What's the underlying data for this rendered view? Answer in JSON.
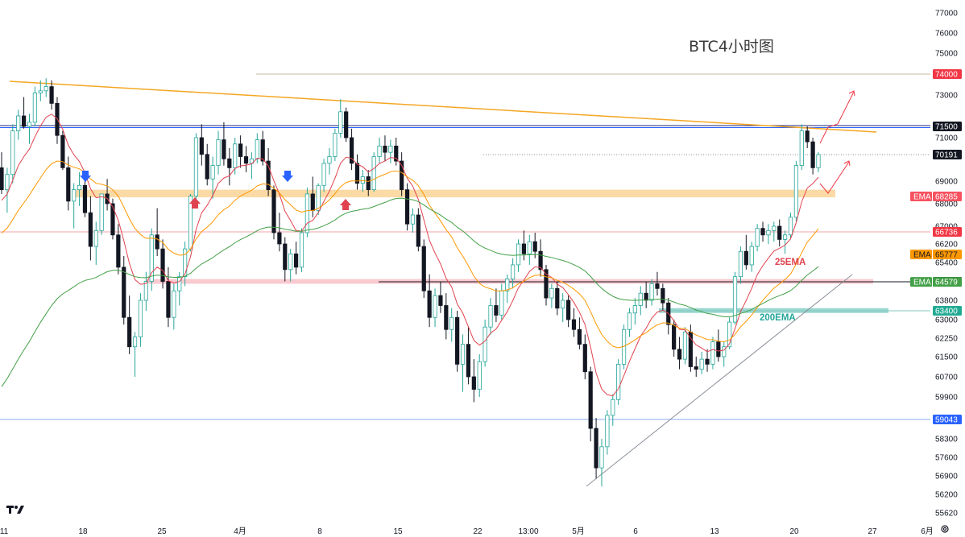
{
  "chart_data": {
    "type": "candlestick",
    "title": "BTC4小时图",
    "y_ticks": [
      77000,
      76000,
      75000,
      73000,
      71000,
      69000,
      68000,
      67000,
      66200,
      65400,
      63800,
      63000,
      62250,
      61500,
      60700,
      59900,
      58300,
      57600,
      56900,
      56200,
      55620
    ],
    "x_ticks": [
      "11",
      "18",
      "25",
      "4月",
      "8",
      "15",
      "22",
      "13:00",
      "5月",
      "6",
      "13",
      "20",
      "27",
      "6月"
    ],
    "price_tags": [
      {
        "value": "74000",
        "color": "#f23645",
        "text_color": "#ffffff"
      },
      {
        "value": "71500",
        "color": "#131722",
        "text_color": "#ffffff"
      },
      {
        "value": "70191",
        "color": "#131722",
        "text_color": "#ffffff"
      },
      {
        "value": "68285",
        "label": "EMA",
        "color": "#f7525f",
        "text_color": "#ffffff"
      },
      {
        "value": "66736",
        "color": "#f23645",
        "text_color": "#ffffff"
      },
      {
        "value": "65777",
        "label": "EMA",
        "color": "#ff9800",
        "text_color": "#131722"
      },
      {
        "value": "64584",
        "color": "#131722",
        "text_color": "#ffffff"
      },
      {
        "value": "64579",
        "label": "EMA",
        "color": "#43a047",
        "text_color": "#ffffff"
      },
      {
        "value": "63400",
        "color": "#22ab94",
        "text_color": "#ffffff"
      },
      {
        "value": "59043",
        "color": "#2962ff",
        "text_color": "#ffffff"
      }
    ],
    "annotations": [
      {
        "text": "25EMA",
        "color": "#e0434f"
      },
      {
        "text": "200EMA",
        "color": "#26a69a"
      }
    ],
    "levels": {
      "resistance_74000": 74000,
      "resistance_71500": 71500,
      "current_price": 70191,
      "support_zone": [
        68250,
        68600
      ],
      "level_66736": 66736,
      "zone_64584": [
        64500,
        64700
      ],
      "zone_63400": [
        63300,
        63500
      ],
      "level_59043": 59043
    },
    "candles": [
      [
        69600,
        70300,
        68400,
        68600
      ],
      [
        68600,
        69600,
        67600,
        69300
      ],
      [
        69300,
        71600,
        68900,
        71300
      ],
      [
        71300,
        72300,
        70900,
        72000
      ],
      [
        72000,
        72900,
        71400,
        71500
      ],
      [
        71500,
        72100,
        70700,
        71700
      ],
      [
        71700,
        73400,
        71500,
        73100
      ],
      [
        73100,
        73700,
        72700,
        73200
      ],
      [
        73200,
        73800,
        72900,
        73400
      ],
      [
        73400,
        73700,
        72300,
        72600
      ],
      [
        72600,
        72900,
        70700,
        71100
      ],
      [
        71100,
        71300,
        69500,
        69600
      ],
      [
        69600,
        70100,
        67700,
        68100
      ],
      [
        68100,
        68900,
        66900,
        68600
      ],
      [
        68600,
        69400,
        67900,
        68800
      ],
      [
        68800,
        69100,
        67400,
        67600
      ],
      [
        67600,
        68300,
        65500,
        66100
      ],
      [
        66100,
        67200,
        65300,
        66800
      ],
      [
        66800,
        68400,
        66600,
        68400
      ],
      [
        68400,
        69100,
        67700,
        68000
      ],
      [
        68000,
        68200,
        66400,
        66600
      ],
      [
        66600,
        67100,
        64900,
        65200
      ],
      [
        65200,
        65700,
        62800,
        63100
      ],
      [
        63100,
        64000,
        61600,
        61900
      ],
      [
        61900,
        62500,
        60700,
        62300
      ],
      [
        62300,
        64100,
        61900,
        63800
      ],
      [
        63800,
        65000,
        63400,
        64600
      ],
      [
        64600,
        66900,
        64200,
        66600
      ],
      [
        66600,
        67800,
        65700,
        66000
      ],
      [
        66000,
        66400,
        64300,
        64600
      ],
      [
        64600,
        65200,
        62700,
        63100
      ],
      [
        63100,
        64500,
        62600,
        64200
      ],
      [
        64200,
        65000,
        63600,
        64800
      ],
      [
        64800,
        66300,
        64400,
        66000
      ],
      [
        66000,
        68400,
        65900,
        68300
      ],
      [
        68300,
        71200,
        68100,
        71000
      ],
      [
        71000,
        71600,
        69700,
        70200
      ],
      [
        70200,
        70700,
        68800,
        69100
      ],
      [
        69100,
        70100,
        68200,
        69700
      ],
      [
        69700,
        71300,
        69300,
        70900
      ],
      [
        70900,
        71700,
        69700,
        70000
      ],
      [
        70000,
        70500,
        68800,
        69600
      ],
      [
        69600,
        71000,
        69300,
        70700
      ],
      [
        70700,
        71100,
        69600,
        70100
      ],
      [
        70100,
        70600,
        69400,
        69800
      ],
      [
        69800,
        70300,
        69100,
        70000
      ],
      [
        70000,
        71200,
        69800,
        70900
      ],
      [
        70900,
        71300,
        69700,
        69900
      ],
      [
        69900,
        70500,
        68300,
        68600
      ],
      [
        68600,
        68800,
        66400,
        66700
      ],
      [
        66700,
        67600,
        65900,
        66200
      ],
      [
        66200,
        66500,
        64600,
        65100
      ],
      [
        65100,
        66000,
        64600,
        65800
      ],
      [
        65800,
        66300,
        64900,
        65200
      ],
      [
        65200,
        66900,
        65000,
        66700
      ],
      [
        66700,
        68700,
        66500,
        68400
      ],
      [
        68400,
        69200,
        67400,
        67700
      ],
      [
        67700,
        68900,
        67500,
        68800
      ],
      [
        68800,
        70000,
        68500,
        69800
      ],
      [
        69800,
        70500,
        69300,
        70100
      ],
      [
        70100,
        71400,
        69900,
        71200
      ],
      [
        71200,
        72800,
        71000,
        72200
      ],
      [
        72200,
        72400,
        70800,
        71000
      ],
      [
        71000,
        71400,
        69500,
        69800
      ],
      [
        69800,
        70200,
        68600,
        68900
      ],
      [
        68900,
        69500,
        68500,
        69200
      ],
      [
        69200,
        69500,
        68300,
        68600
      ],
      [
        68600,
        70300,
        68500,
        70100
      ],
      [
        70100,
        71000,
        69800,
        70600
      ],
      [
        70600,
        71100,
        69900,
        70300
      ],
      [
        70300,
        70900,
        69800,
        70600
      ],
      [
        70600,
        71000,
        69700,
        69900
      ],
      [
        69900,
        70300,
        68300,
        68600
      ],
      [
        68600,
        68900,
        66800,
        67100
      ],
      [
        67100,
        67800,
        66700,
        67500
      ],
      [
        67500,
        67800,
        65900,
        66100
      ],
      [
        66100,
        66400,
        63900,
        64200
      ],
      [
        64200,
        64900,
        62700,
        63100
      ],
      [
        63100,
        64300,
        62700,
        64000
      ],
      [
        64000,
        64600,
        63300,
        63600
      ],
      [
        63600,
        64100,
        62200,
        62600
      ],
      [
        62600,
        63500,
        62100,
        63100
      ],
      [
        63100,
        63400,
        60900,
        61200
      ],
      [
        61200,
        62400,
        60100,
        62000
      ],
      [
        62000,
        62700,
        60400,
        60700
      ],
      [
        60700,
        61400,
        59700,
        60200
      ],
      [
        60200,
        61600,
        59900,
        61300
      ],
      [
        61300,
        63000,
        61100,
        62700
      ],
      [
        62700,
        63900,
        62400,
        63600
      ],
      [
        63600,
        64300,
        62900,
        63200
      ],
      [
        63200,
        64500,
        63000,
        64200
      ],
      [
        64200,
        64900,
        63700,
        64700
      ],
      [
        64700,
        65600,
        64300,
        65300
      ],
      [
        65300,
        66400,
        65000,
        66200
      ],
      [
        66200,
        66800,
        65500,
        65800
      ],
      [
        65800,
        66600,
        65300,
        66300
      ],
      [
        66300,
        66700,
        65600,
        65900
      ],
      [
        65900,
        66400,
        64800,
        65100
      ],
      [
        65100,
        65300,
        63600,
        63900
      ],
      [
        63900,
        64500,
        63500,
        64300
      ],
      [
        64300,
        64600,
        63200,
        63500
      ],
      [
        63500,
        64100,
        62900,
        63800
      ],
      [
        63800,
        64000,
        62700,
        63000
      ],
      [
        63000,
        63500,
        62300,
        62600
      ],
      [
        62600,
        63100,
        61800,
        62000
      ],
      [
        62000,
        62400,
        60600,
        60900
      ],
      [
        60900,
        61100,
        58200,
        58700
      ],
      [
        58700,
        59100,
        56800,
        57200
      ],
      [
        57200,
        58300,
        56500,
        58000
      ],
      [
        58000,
        59400,
        57700,
        59200
      ],
      [
        59200,
        60000,
        58800,
        59800
      ],
      [
        59800,
        61400,
        59600,
        61200
      ],
      [
        61200,
        62800,
        61000,
        62600
      ],
      [
        62600,
        63500,
        62300,
        63300
      ],
      [
        63300,
        63900,
        62800,
        63600
      ],
      [
        63600,
        64400,
        63200,
        64100
      ],
      [
        64100,
        64600,
        63500,
        63800
      ],
      [
        63800,
        64700,
        63600,
        64500
      ],
      [
        64500,
        65000,
        64000,
        64300
      ],
      [
        64300,
        64500,
        63400,
        63700
      ],
      [
        63700,
        63900,
        62400,
        62800
      ],
      [
        62800,
        63000,
        61500,
        61800
      ],
      [
        61800,
        62300,
        61000,
        61400
      ],
      [
        61400,
        62700,
        61200,
        62500
      ],
      [
        62500,
        62800,
        60900,
        61100
      ],
      [
        61100,
        61500,
        60700,
        61000
      ],
      [
        61000,
        61700,
        60800,
        61400
      ],
      [
        61400,
        61800,
        60900,
        61200
      ],
      [
        61200,
        62300,
        61000,
        62100
      ],
      [
        62100,
        62600,
        61300,
        61500
      ],
      [
        61500,
        62100,
        61100,
        61900
      ],
      [
        61900,
        63100,
        61800,
        62900
      ],
      [
        62900,
        65000,
        62800,
        64800
      ],
      [
        64800,
        66100,
        64500,
        65900
      ],
      [
        65900,
        66600,
        65100,
        65300
      ],
      [
        65300,
        66300,
        65000,
        66100
      ],
      [
        66100,
        67100,
        65900,
        66900
      ],
      [
        66900,
        67200,
        66300,
        66600
      ],
      [
        66600,
        67100,
        66200,
        66800
      ],
      [
        66800,
        67200,
        66300,
        67000
      ],
      [
        67000,
        67300,
        66100,
        66400
      ],
      [
        66400,
        66800,
        65800,
        66600
      ],
      [
        66600,
        67600,
        66400,
        67400
      ],
      [
        67400,
        69900,
        67200,
        69700
      ],
      [
        69700,
        71600,
        69500,
        71300
      ],
      [
        71300,
        71500,
        70500,
        70800
      ],
      [
        70800,
        71000,
        69300,
        69600
      ],
      [
        69600,
        70300,
        69400,
        70191
      ]
    ]
  }
}
